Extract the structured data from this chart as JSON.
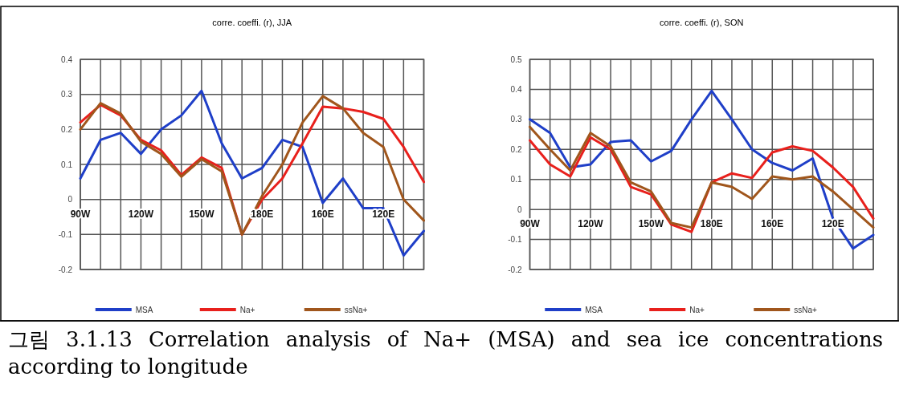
{
  "chart_data": [
    {
      "type": "line",
      "title": "corre. coeffi. (r), JJA",
      "categories": [
        "90W",
        null,
        null,
        "120W",
        null,
        null,
        "150W",
        null,
        null,
        "180E",
        null,
        null,
        "160E",
        null,
        null,
        "120E",
        null,
        null
      ],
      "series": [
        {
          "name": "MSA",
          "color": "#1f3fc8",
          "values": [
            0.06,
            0.17,
            0.19,
            0.13,
            0.2,
            0.24,
            0.31,
            0.16,
            0.06,
            0.09,
            0.17,
            0.15,
            -0.01,
            0.06,
            -0.025,
            -0.025,
            -0.16,
            -0.09
          ]
        },
        {
          "name": "Na+",
          "color": "#e8201c",
          "values": [
            0.22,
            0.27,
            0.24,
            0.17,
            0.14,
            0.07,
            0.12,
            0.09,
            -0.1,
            0.0,
            0.06,
            0.16,
            0.265,
            0.26,
            0.25,
            0.23,
            0.15,
            0.05
          ]
        },
        {
          "name": "ssNa+",
          "color": "#a0561c",
          "values": [
            0.2,
            0.275,
            0.245,
            0.165,
            0.13,
            0.065,
            0.115,
            0.08,
            -0.1,
            0.01,
            0.1,
            0.22,
            0.295,
            0.26,
            0.19,
            0.15,
            0.0,
            -0.06
          ]
        }
      ],
      "ylim": [
        -0.2,
        0.4
      ],
      "yticks": [
        -0.2,
        -0.1,
        0,
        0.1,
        0.2,
        0.3,
        0.4
      ],
      "grid": true,
      "legend": "bottom",
      "annotations": [
        "그림 3.1.13 Correlation analysis of Na+ (MSA) and sea ice concentrations according to longitude"
      ]
    },
    {
      "type": "line",
      "title": "corre. coeffi. (r), SON",
      "categories": [
        "90W",
        null,
        null,
        "120W",
        null,
        null,
        "150W",
        null,
        null,
        "180E",
        null,
        null,
        "160E",
        null,
        null,
        "120E",
        null,
        null
      ],
      "series": [
        {
          "name": "MSA",
          "color": "#1f3fc8",
          "values": [
            0.3,
            0.255,
            0.14,
            0.15,
            0.225,
            0.23,
            0.16,
            0.195,
            0.3,
            0.395,
            0.3,
            0.2,
            0.155,
            0.13,
            0.17,
            -0.03,
            -0.13,
            -0.085
          ]
        },
        {
          "name": "Na+",
          "color": "#e8201c",
          "values": [
            0.23,
            0.15,
            0.11,
            0.24,
            0.2,
            0.075,
            0.05,
            -0.05,
            -0.075,
            0.09,
            0.12,
            0.105,
            0.19,
            0.21,
            0.195,
            0.14,
            0.075,
            -0.03
          ]
        },
        {
          "name": "ssNa+",
          "color": "#a0561c",
          "values": [
            0.275,
            0.2,
            0.13,
            0.255,
            0.21,
            0.09,
            0.06,
            -0.045,
            -0.06,
            0.09,
            0.075,
            0.035,
            0.11,
            0.1,
            0.11,
            0.06,
            0.0,
            -0.06
          ]
        }
      ],
      "ylim": [
        -0.2,
        0.5
      ],
      "yticks": [
        -0.2,
        -0.1,
        0,
        0.1,
        0.2,
        0.3,
        0.4,
        0.5
      ],
      "grid": true,
      "legend": "bottom"
    }
  ]
}
